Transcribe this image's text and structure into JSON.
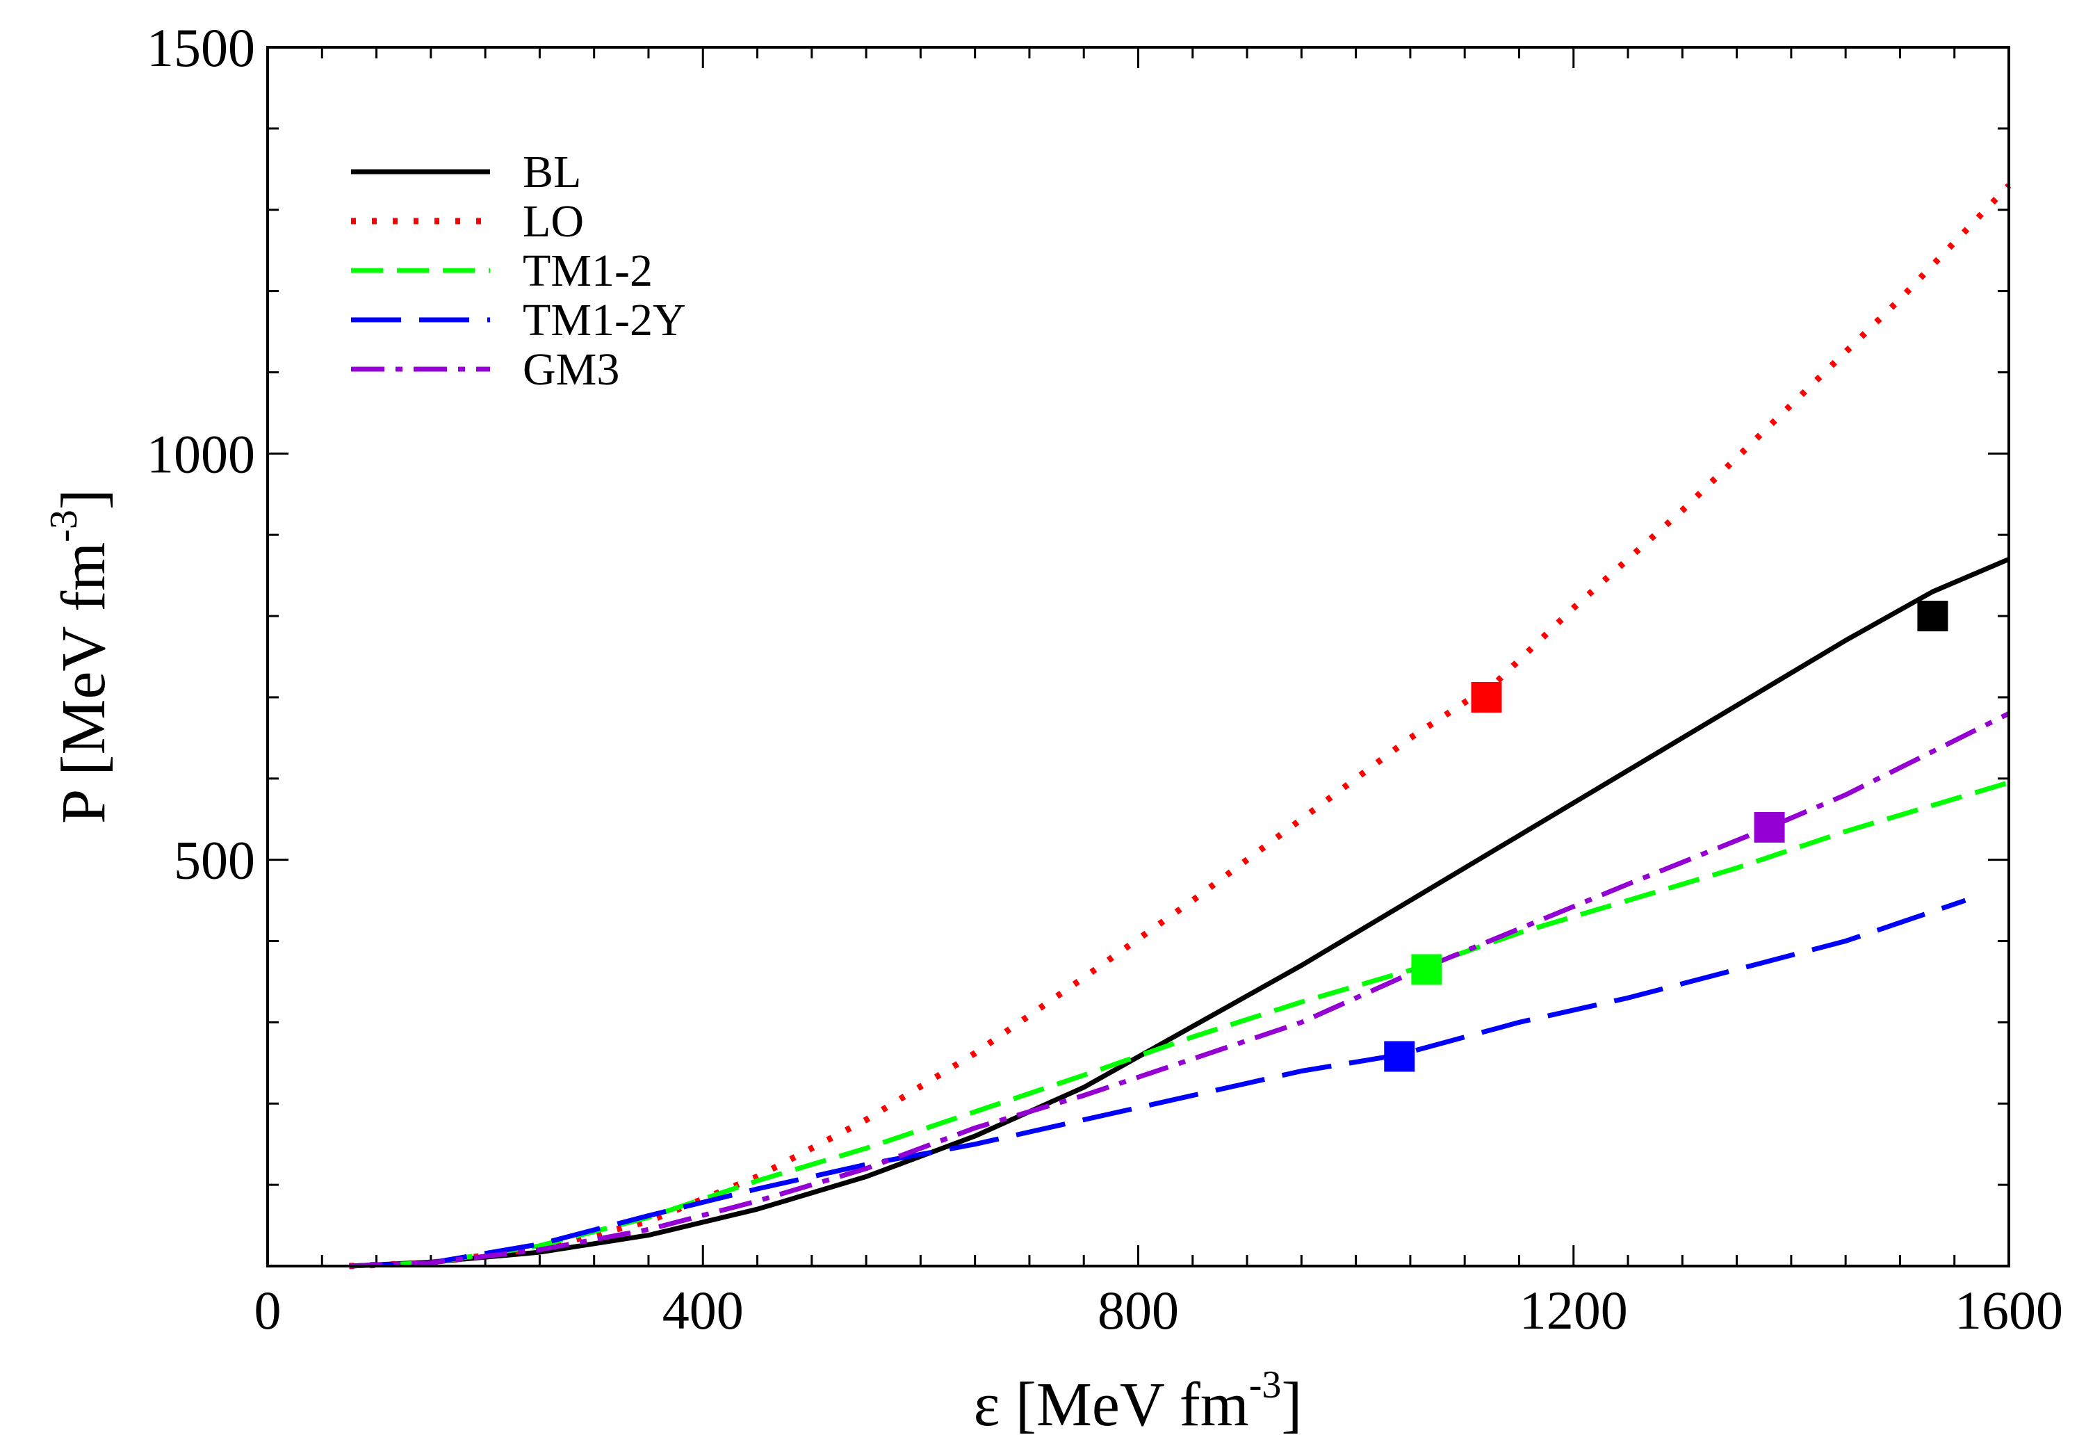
{
  "chart_data": {
    "type": "line",
    "title": "",
    "xlabel": "ε [MeV fm",
    "xlabel_sup": "-3",
    "xlabel_close": "]",
    "ylabel": "P [MeV fm",
    "ylabel_sup": "-3",
    "ylabel_close": "]",
    "xlim": [
      0,
      1600
    ],
    "ylim": [
      0,
      1500
    ],
    "x_major_ticks": [
      0,
      400,
      800,
      1200,
      1600
    ],
    "x_tick_labels": [
      "0",
      "400",
      "800",
      "1200",
      "1600"
    ],
    "y_major_ticks": [
      500,
      1000,
      1500
    ],
    "y_tick_labels": [
      "500",
      "1000",
      "1500"
    ],
    "x_minor_step": 50,
    "y_minor_step": 100,
    "grid": false,
    "legend_position": "top-left",
    "series": [
      {
        "name": "BL",
        "color": "#000000",
        "style": "solid",
        "x": [
          75,
          150,
          250,
          350,
          450,
          550,
          650,
          750,
          850,
          950,
          1050,
          1150,
          1250,
          1350,
          1450,
          1530,
          1600
        ],
        "y": [
          0,
          5,
          17,
          38,
          70,
          110,
          160,
          220,
          295,
          370,
          450,
          530,
          610,
          690,
          770,
          830,
          870
        ],
        "marker": {
          "x": 1530,
          "y": 800
        }
      },
      {
        "name": "LO",
        "color": "#ff0000",
        "style": "dotted",
        "x": [
          75,
          150,
          250,
          350,
          450,
          550,
          650,
          750,
          850,
          950,
          1050,
          1130,
          1200,
          1300,
          1400,
          1500,
          1600
        ],
        "y": [
          0,
          4,
          22,
          55,
          110,
          180,
          262,
          355,
          450,
          550,
          650,
          720,
          810,
          930,
          1060,
          1190,
          1330
        ],
        "marker": {
          "x": 1120,
          "y": 700
        }
      },
      {
        "name": "TM1-2",
        "color": "#00ff00",
        "style": "dashed",
        "x": [
          75,
          150,
          250,
          350,
          450,
          550,
          650,
          750,
          850,
          950,
          1065,
          1150,
          1250,
          1350,
          1450,
          1550,
          1600
        ],
        "y": [
          0,
          4,
          25,
          60,
          105,
          145,
          190,
          235,
          282,
          325,
          370,
          410,
          450,
          490,
          535,
          575,
          595
        ],
        "marker": {
          "x": 1065,
          "y": 365
        }
      },
      {
        "name": "TM1-2Y",
        "color": "#0000ff",
        "style": "longdash",
        "x": [
          75,
          150,
          250,
          350,
          450,
          550,
          650,
          750,
          850,
          950,
          1040,
          1150,
          1250,
          1350,
          1450,
          1560
        ],
        "y": [
          0,
          4,
          27,
          62,
          95,
          125,
          150,
          180,
          210,
          240,
          260,
          300,
          330,
          365,
          400,
          450
        ],
        "marker": {
          "x": 1040,
          "y": 258
        }
      },
      {
        "name": "GM3",
        "color": "#9400d3",
        "style": "dashdot",
        "x": [
          75,
          150,
          250,
          350,
          450,
          550,
          650,
          750,
          850,
          950,
          1050,
          1150,
          1250,
          1380,
          1450,
          1600
        ],
        "y": [
          0,
          4,
          20,
          45,
          80,
          120,
          170,
          210,
          255,
          300,
          360,
          415,
          470,
          540,
          580,
          680
        ],
        "marker": {
          "x": 1380,
          "y": 540
        }
      }
    ]
  }
}
